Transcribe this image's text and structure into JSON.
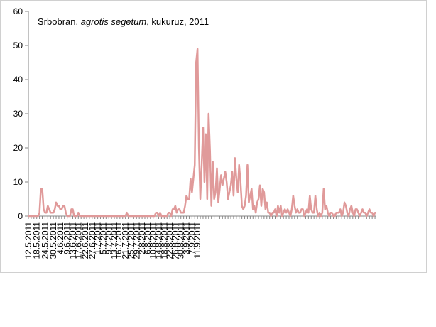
{
  "chart_data": {
    "type": "line",
    "title_parts": [
      "Srbobran, ",
      "agrotis segetum",
      ", kukuruz, 2011"
    ],
    "xlabel": "",
    "ylabel": "",
    "ylim": [
      0,
      60
    ],
    "yticks": [
      0,
      10,
      20,
      30,
      40,
      50,
      60
    ],
    "grid": false,
    "legend": "none",
    "line_color": "#e09a9a",
    "axis_color": "#868686",
    "x_start": "12.5.2011",
    "x_tick_labels": [
      "12.5.2011",
      "18.5.2011",
      "24.5.2011",
      "30.5.2011",
      "4.6.2011",
      "9.6.2011",
      "13.6.2011",
      "17.6.2011",
      "22.6.2011",
      "27.6.2011",
      "1.7.2011",
      "5.7.2011",
      "9.7.2011",
      "13.7.2011",
      "16.7.2011",
      "21.7.2011",
      "25.7.2011",
      "29.7.2011",
      "2.8.2011",
      "6.8.2011",
      "10.8.2011",
      "14.8.2011",
      "18.8.2011",
      "22.8.2011",
      "26.8.2011",
      "30.8.2011",
      "3.9.2011",
      "7.9.2011",
      "11.9.2011"
    ],
    "series": [
      {
        "values": [
          0,
          0,
          0,
          0,
          0,
          0,
          0,
          0,
          1,
          8,
          8,
          2,
          1,
          1,
          3,
          2,
          1,
          1,
          1,
          2,
          4,
          3,
          3,
          2,
          2,
          3,
          3,
          1,
          0,
          0,
          0,
          2,
          2,
          0,
          0,
          0,
          1,
          0,
          0,
          0,
          0,
          0,
          0,
          0,
          0,
          0,
          0,
          0,
          0,
          0,
          0,
          0,
          0,
          0,
          0,
          0,
          0,
          0,
          0,
          0,
          0,
          0,
          0,
          0,
          0,
          0,
          0,
          0,
          0,
          0,
          0,
          1,
          0,
          0,
          0,
          0,
          0,
          0,
          0,
          0,
          0,
          0,
          0,
          0,
          0,
          0,
          0,
          0,
          0,
          0,
          0,
          0,
          1,
          1,
          0,
          1,
          0,
          0,
          0,
          0,
          0,
          1,
          1,
          0,
          2,
          2,
          3,
          1,
          2,
          2,
          1,
          1,
          1,
          3,
          6,
          5,
          5,
          11,
          7,
          11,
          15,
          45,
          49,
          20,
          5,
          15,
          26,
          10,
          24,
          5,
          30,
          19,
          3,
          16,
          5,
          7,
          14,
          4,
          8,
          12,
          9,
          11,
          13,
          10,
          5,
          7,
          9,
          13,
          6,
          17,
          11,
          7,
          15,
          10,
          3,
          2,
          3,
          6,
          15,
          4,
          6,
          8,
          2,
          3,
          1,
          4,
          5,
          9,
          3,
          8,
          7,
          2,
          4,
          1,
          1,
          0,
          1,
          1,
          2,
          0,
          3,
          1,
          3,
          0,
          1,
          2,
          1,
          2,
          1,
          0,
          2,
          6,
          3,
          1,
          2,
          1,
          1,
          2,
          2,
          0,
          1,
          2,
          1,
          6,
          2,
          1,
          1,
          6,
          2,
          0,
          1,
          0,
          1,
          8,
          2,
          3,
          1,
          0,
          1,
          1,
          0,
          0,
          1,
          1,
          1,
          2,
          0,
          1,
          4,
          3,
          1,
          0,
          2,
          3,
          1,
          0,
          2,
          2,
          1,
          0,
          1,
          2,
          1,
          1,
          0,
          1,
          2,
          1,
          1,
          0,
          1,
          1
        ]
      }
    ]
  }
}
